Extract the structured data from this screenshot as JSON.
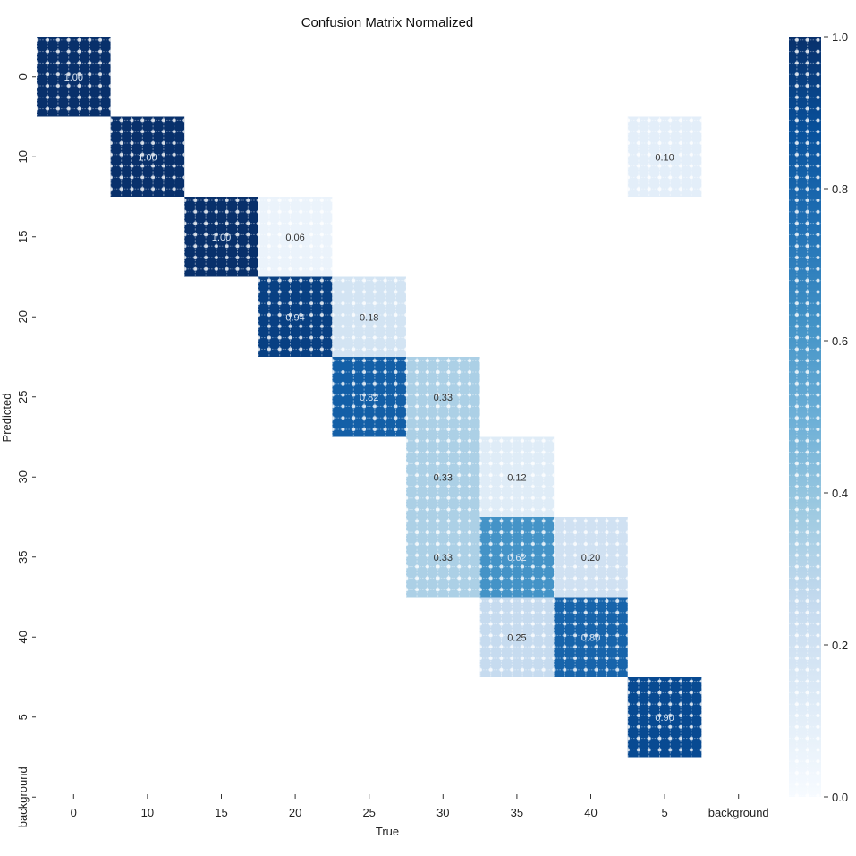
{
  "chart_data": {
    "type": "heatmap",
    "title": "Confusion Matrix Normalized",
    "xlabel": "True",
    "ylabel": "Predicted",
    "x_categories": [
      "0",
      "10",
      "15",
      "20",
      "25",
      "30",
      "35",
      "40",
      "5",
      "background"
    ],
    "y_categories": [
      "0",
      "10",
      "15",
      "20",
      "25",
      "30",
      "35",
      "40",
      "5",
      "background"
    ],
    "cells": [
      {
        "row": "0",
        "col": "0",
        "value": 1.0,
        "label": "1.00"
      },
      {
        "row": "10",
        "col": "10",
        "value": 1.0,
        "label": "1.00"
      },
      {
        "row": "10",
        "col": "5",
        "value": 0.1,
        "label": "0.10"
      },
      {
        "row": "15",
        "col": "15",
        "value": 1.0,
        "label": "1.00"
      },
      {
        "row": "15",
        "col": "20",
        "value": 0.06,
        "label": "0.06"
      },
      {
        "row": "20",
        "col": "20",
        "value": 0.94,
        "label": "0.94"
      },
      {
        "row": "20",
        "col": "25",
        "value": 0.18,
        "label": "0.18"
      },
      {
        "row": "25",
        "col": "25",
        "value": 0.82,
        "label": "0.82"
      },
      {
        "row": "25",
        "col": "30",
        "value": 0.33,
        "label": "0.33"
      },
      {
        "row": "30",
        "col": "30",
        "value": 0.33,
        "label": "0.33"
      },
      {
        "row": "30",
        "col": "35",
        "value": 0.12,
        "label": "0.12"
      },
      {
        "row": "35",
        "col": "30",
        "value": 0.33,
        "label": "0.33"
      },
      {
        "row": "35",
        "col": "35",
        "value": 0.62,
        "label": "0.62"
      },
      {
        "row": "35",
        "col": "40",
        "value": 0.2,
        "label": "0.20"
      },
      {
        "row": "40",
        "col": "35",
        "value": 0.25,
        "label": "0.25"
      },
      {
        "row": "40",
        "col": "40",
        "value": 0.8,
        "label": "0.80"
      },
      {
        "row": "5",
        "col": "5",
        "value": 0.9,
        "label": "0.90"
      }
    ],
    "colorbar": {
      "colormap": "Blues",
      "range": [
        0.0,
        1.0
      ],
      "ticks": [
        "0.0",
        "0.2",
        "0.4",
        "0.6",
        "0.8",
        "1.0"
      ]
    },
    "grid": false
  }
}
